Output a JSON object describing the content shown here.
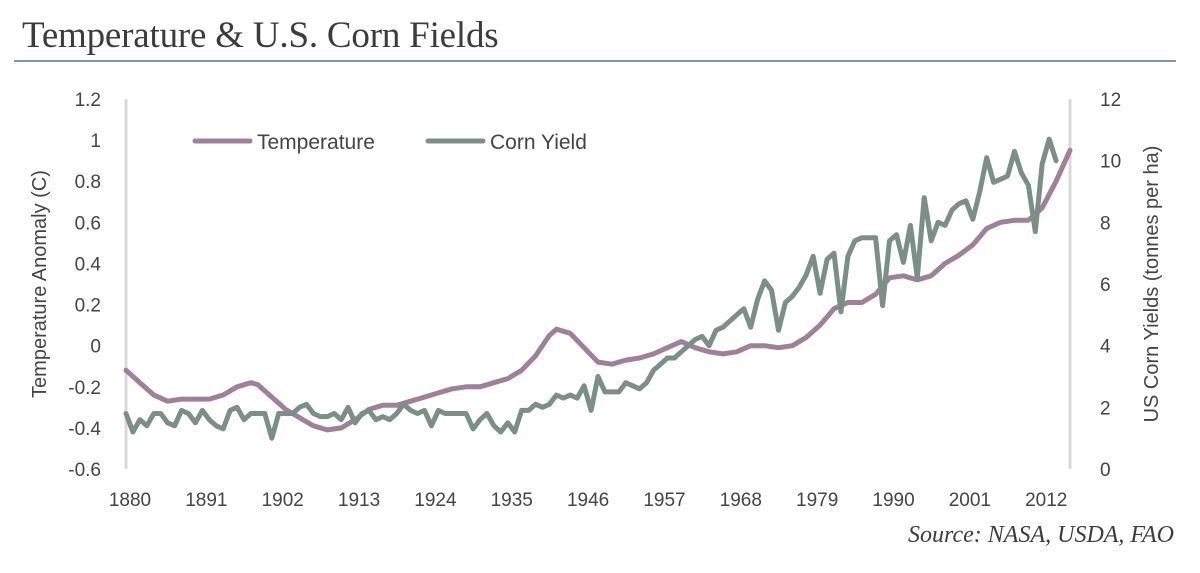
{
  "title": "Temperature & U.S. Corn Fields",
  "source": "Source: NASA, USDA, FAO",
  "colors": {
    "temperature": "#a08099",
    "corn_yield": "#7a8f88",
    "axis": "#d9d9d9",
    "rule": "#7d9d92"
  },
  "chart_data": {
    "type": "line",
    "x_ticks": [
      1880,
      1891,
      1902,
      1913,
      1924,
      1935,
      1946,
      1957,
      1968,
      1979,
      1990,
      2001,
      2012
    ],
    "xlim": [
      1880,
      2016
    ],
    "left_axis": {
      "label": "Temperature Anomaly (C)",
      "ylim": [
        -0.6,
        1.2
      ],
      "ticks": [
        "-0.6",
        "-0.4",
        "-0.2",
        "0",
        "0.2",
        "0.4",
        "0.6",
        "0.8",
        "1",
        "1.2"
      ]
    },
    "right_axis": {
      "label": "US Corn Yields (tonnes per ha)",
      "ylim": [
        0,
        12
      ],
      "ticks": [
        "0",
        "2",
        "4",
        "6",
        "8",
        "10",
        "12"
      ]
    },
    "legend_position": "top-left",
    "series": [
      {
        "name": "Temperature",
        "axis": "left",
        "x": [
          1880,
          1882,
          1884,
          1886,
          1888,
          1890,
          1892,
          1894,
          1896,
          1898,
          1899,
          1901,
          1903,
          1905,
          1907,
          1909,
          1911,
          1913,
          1915,
          1917,
          1919,
          1921,
          1923,
          1925,
          1927,
          1929,
          1931,
          1933,
          1935,
          1937,
          1939,
          1941,
          1942,
          1944,
          1946,
          1948,
          1950,
          1952,
          1954,
          1956,
          1958,
          1960,
          1962,
          1964,
          1966,
          1968,
          1970,
          1972,
          1974,
          1976,
          1978,
          1980,
          1982,
          1984,
          1986,
          1988,
          1990,
          1992,
          1994,
          1996,
          1998,
          2000,
          2002,
          2004,
          2006,
          2008,
          2010,
          2012,
          2014,
          2016
        ],
        "y": [
          -0.12,
          -0.18,
          -0.24,
          -0.27,
          -0.26,
          -0.26,
          -0.26,
          -0.24,
          -0.2,
          -0.18,
          -0.19,
          -0.25,
          -0.31,
          -0.35,
          -0.39,
          -0.41,
          -0.4,
          -0.36,
          -0.31,
          -0.29,
          -0.29,
          -0.27,
          -0.25,
          -0.23,
          -0.21,
          -0.2,
          -0.2,
          -0.18,
          -0.16,
          -0.12,
          -0.05,
          0.05,
          0.08,
          0.06,
          -0.01,
          -0.08,
          -0.09,
          -0.07,
          -0.06,
          -0.04,
          -0.01,
          0.02,
          -0.01,
          -0.03,
          -0.04,
          -0.03,
          0.0,
          0.0,
          -0.01,
          0.0,
          0.04,
          0.1,
          0.18,
          0.21,
          0.21,
          0.25,
          0.33,
          0.34,
          0.32,
          0.34,
          0.4,
          0.44,
          0.49,
          0.57,
          0.6,
          0.61,
          0.61,
          0.67,
          0.8,
          0.95
        ]
      },
      {
        "name": "Corn Yield",
        "axis": "right",
        "x": [
          1880,
          1881,
          1882,
          1883,
          1884,
          1885,
          1886,
          1887,
          1888,
          1889,
          1890,
          1891,
          1892,
          1893,
          1894,
          1895,
          1896,
          1897,
          1898,
          1899,
          1900,
          1901,
          1902,
          1903,
          1904,
          1905,
          1906,
          1907,
          1908,
          1909,
          1910,
          1911,
          1912,
          1913,
          1914,
          1915,
          1916,
          1917,
          1918,
          1919,
          1920,
          1921,
          1922,
          1923,
          1924,
          1925,
          1926,
          1927,
          1928,
          1929,
          1930,
          1931,
          1932,
          1933,
          1934,
          1935,
          1936,
          1937,
          1938,
          1939,
          1940,
          1941,
          1942,
          1943,
          1944,
          1945,
          1946,
          1947,
          1948,
          1949,
          1950,
          1951,
          1952,
          1953,
          1954,
          1955,
          1956,
          1957,
          1958,
          1959,
          1960,
          1961,
          1962,
          1963,
          1964,
          1965,
          1966,
          1967,
          1968,
          1969,
          1970,
          1971,
          1972,
          1973,
          1974,
          1975,
          1976,
          1977,
          1978,
          1979,
          1980,
          1981,
          1982,
          1983,
          1984,
          1985,
          1986,
          1987,
          1988,
          1989,
          1990,
          1991,
          1992,
          1993,
          1994,
          1995,
          1996,
          1997,
          1998,
          1999,
          2000,
          2001,
          2002,
          2003,
          2004,
          2005,
          2006,
          2007,
          2008,
          2009,
          2010,
          2011,
          2012,
          2013,
          2014
        ],
        "y": [
          1.8,
          1.2,
          1.6,
          1.4,
          1.8,
          1.8,
          1.5,
          1.4,
          1.9,
          1.8,
          1.5,
          1.9,
          1.6,
          1.4,
          1.3,
          1.9,
          2.0,
          1.6,
          1.8,
          1.8,
          1.8,
          1.0,
          1.8,
          1.8,
          1.8,
          2.0,
          2.1,
          1.8,
          1.7,
          1.7,
          1.8,
          1.6,
          2.0,
          1.5,
          1.8,
          1.9,
          1.6,
          1.7,
          1.6,
          1.8,
          2.1,
          1.9,
          1.8,
          1.9,
          1.4,
          1.9,
          1.8,
          1.8,
          1.8,
          1.8,
          1.3,
          1.6,
          1.8,
          1.4,
          1.2,
          1.5,
          1.2,
          1.9,
          1.9,
          2.1,
          2.0,
          2.1,
          2.4,
          2.3,
          2.4,
          2.3,
          2.7,
          1.9,
          3.0,
          2.5,
          2.5,
          2.5,
          2.8,
          2.7,
          2.6,
          2.8,
          3.2,
          3.4,
          3.6,
          3.6,
          3.8,
          4.0,
          4.2,
          4.3,
          4.0,
          4.5,
          4.6,
          4.8,
          5.0,
          5.2,
          4.6,
          5.5,
          6.1,
          5.8,
          4.5,
          5.4,
          5.6,
          5.9,
          6.3,
          6.9,
          5.7,
          6.8,
          7.0,
          5.1,
          6.9,
          7.4,
          7.5,
          7.5,
          7.5,
          5.3,
          7.4,
          7.6,
          6.7,
          7.9,
          6.2,
          8.8,
          7.4,
          8.0,
          7.9,
          8.4,
          8.6,
          8.7,
          8.1,
          9.0,
          10.1,
          9.3,
          9.4,
          9.5,
          10.3,
          9.6,
          9.2,
          7.7,
          9.9,
          10.7,
          10.0
        ]
      }
    ]
  }
}
